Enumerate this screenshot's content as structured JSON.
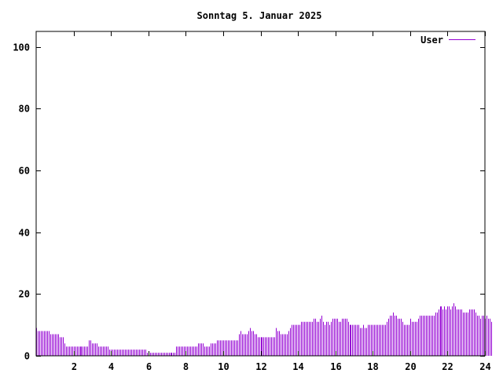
{
  "chart_data": {
    "type": "bar",
    "title": "Sonntag 5. Januar 2025",
    "xlabel": "",
    "ylabel": "",
    "xlim": [
      0,
      24
    ],
    "ylim": [
      0,
      105
    ],
    "xticks": [
      2,
      4,
      6,
      8,
      10,
      12,
      14,
      16,
      18,
      20,
      22,
      24
    ],
    "yticks": [
      0,
      20,
      40,
      60,
      80,
      100
    ],
    "grid": false,
    "legend_position": "top-right",
    "series": [
      {
        "name": "User",
        "color": "#9400d3",
        "bin_minutes": 5,
        "values": [
          9,
          8,
          8,
          8,
          8,
          8,
          8,
          8,
          8,
          7,
          7,
          7,
          7,
          7,
          7,
          6,
          6,
          6,
          4,
          3,
          3,
          3,
          3,
          3,
          3,
          3,
          3,
          3,
          3,
          3,
          3,
          3,
          3,
          3,
          5,
          5,
          4,
          4,
          4,
          4,
          3,
          3,
          3,
          3,
          3,
          3,
          3,
          2,
          2,
          2,
          2,
          2,
          2,
          2,
          2,
          2,
          2,
          2,
          2,
          2,
          2,
          2,
          2,
          2,
          2,
          2,
          2,
          2,
          2,
          2,
          2,
          1,
          1,
          1,
          1,
          1,
          1,
          1,
          1,
          1,
          1,
          1,
          1,
          1,
          1,
          1,
          1,
          1,
          1,
          1,
          3,
          3,
          3,
          3,
          3,
          3,
          3,
          3,
          3,
          3,
          3,
          3,
          3,
          3,
          4,
          4,
          4,
          4,
          3,
          3,
          3,
          3,
          4,
          4,
          4,
          4,
          5,
          5,
          5,
          5,
          5,
          5,
          5,
          5,
          5,
          5,
          5,
          5,
          5,
          5,
          7,
          8,
          7,
          7,
          7,
          7,
          8,
          9,
          8,
          8,
          7,
          7,
          6,
          6,
          6,
          6,
          6,
          6,
          6,
          6,
          6,
          6,
          6,
          6,
          9,
          8,
          8,
          7,
          7,
          7,
          7,
          7,
          8,
          9,
          10,
          10,
          10,
          10,
          10,
          10,
          11,
          11,
          11,
          11,
          11,
          11,
          11,
          11,
          12,
          12,
          11,
          11,
          12,
          13,
          11,
          10,
          11,
          11,
          10,
          11,
          12,
          12,
          12,
          12,
          11,
          11,
          12,
          12,
          12,
          12,
          11,
          10,
          10,
          10,
          10,
          10,
          10,
          10,
          9,
          9,
          10,
          9,
          9,
          10,
          10,
          10,
          10,
          10,
          10,
          10,
          10,
          10,
          10,
          10,
          10,
          11,
          12,
          13,
          13,
          14,
          13,
          13,
          12,
          12,
          12,
          11,
          10,
          10,
          10,
          10,
          12,
          11,
          11,
          11,
          11,
          12,
          13,
          13,
          13,
          13,
          13,
          13,
          13,
          13,
          13,
          13,
          14,
          14,
          15,
          16,
          16,
          15,
          16,
          15,
          16,
          16,
          15,
          16,
          17,
          16,
          15,
          15,
          15,
          15,
          14,
          14,
          14,
          14,
          15,
          15,
          15,
          15,
          14,
          13,
          13,
          12,
          13,
          13,
          12,
          13,
          12,
          12,
          11
        ]
      }
    ]
  }
}
